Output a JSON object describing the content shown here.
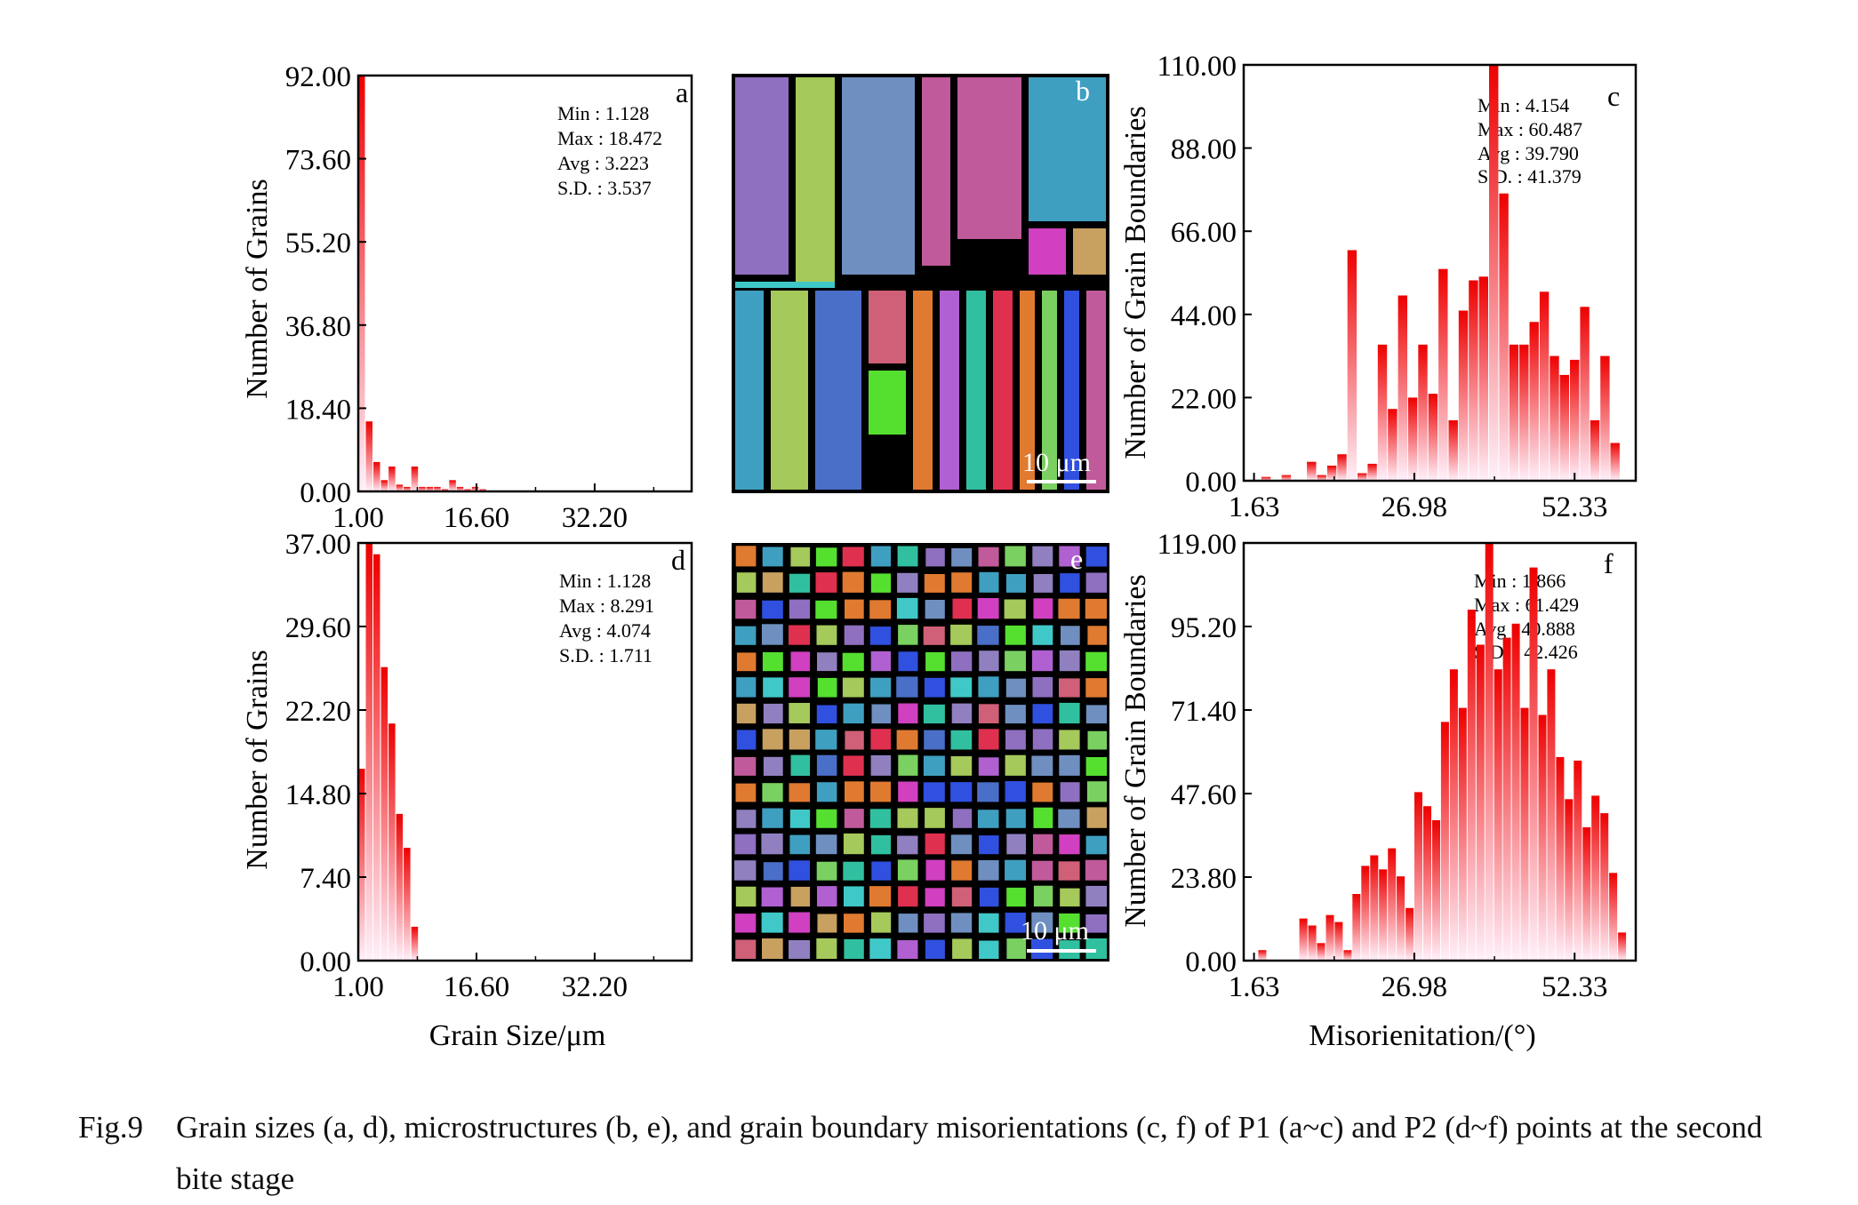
{
  "colors": {
    "bar_top": "#ee0000",
    "bar_bottom": "#fff0fa",
    "axis": "#000000",
    "grain_boundary": "#000000",
    "grain_palette": [
      "#8f6fc0",
      "#a5c95a",
      "#6f8fc0",
      "#c05a9a",
      "#3f9fc0",
      "#4a6fc8",
      "#d06078",
      "#55e030",
      "#e07a30",
      "#b060d0",
      "#30c0a0",
      "#e03050",
      "#7ad060",
      "#3050e0",
      "#d040c0",
      "#c8a060",
      "#40c8c8",
      "#9080c0"
    ]
  },
  "chart_data": [
    {
      "id": "a",
      "type": "bar",
      "panel_label": "a",
      "ylabel": "Number of Grains",
      "xlabel": "",
      "xlim": [
        1.0,
        45.0
      ],
      "ylim": [
        0,
        92
      ],
      "xticks": [
        "1.00",
        "16.60",
        "32.20"
      ],
      "yticks": [
        "0.00",
        "18.40",
        "36.80",
        "55.20",
        "73.60",
        "92.00"
      ],
      "bin_width": 1.0,
      "x": [
        1.5,
        2.5,
        3.5,
        4.5,
        5.5,
        6.5,
        7.5,
        8.5,
        9.5,
        10.5,
        11.5,
        12.5,
        13.5,
        14.5,
        15.5,
        16.5,
        17.5
      ],
      "values": [
        92,
        15.5,
        6.5,
        2.5,
        5.5,
        1.5,
        1,
        5.5,
        1,
        1,
        1,
        0.5,
        2.5,
        1,
        0.5,
        1,
        0.5
      ],
      "stats": [
        "Min  : 1.128",
        "Max : 18.472",
        "Avg  : 3.223",
        "S.D. : 3.537"
      ]
    },
    {
      "id": "c",
      "type": "bar",
      "panel_label": "c",
      "ylabel": "Number of Grain Boundaries",
      "xlabel": "",
      "xlim": [
        0,
        62
      ],
      "ylim": [
        0,
        110
      ],
      "xticks": [
        "1.63",
        "26.98",
        "52.33"
      ],
      "yticks": [
        "0.00",
        "22.00",
        "44.00",
        "66.00",
        "88.00",
        "110.00"
      ],
      "bin_width": 1.6,
      "x": [
        3.6,
        6.8,
        10.8,
        12.4,
        14.0,
        15.6,
        17.2,
        18.8,
        20.4,
        22.0,
        23.6,
        25.2,
        26.8,
        28.4,
        30.0,
        31.6,
        33.2,
        34.8,
        36.4,
        38.0,
        39.6,
        41.2,
        42.8,
        44.4,
        46.0,
        47.6,
        49.2,
        50.8,
        52.4,
        54.0,
        55.6,
        57.2,
        58.8
      ],
      "values": [
        1,
        1.5,
        5,
        1.5,
        4,
        7,
        61,
        2,
        4.5,
        36,
        19,
        49,
        22,
        36,
        23,
        56,
        16,
        45,
        53,
        54,
        110,
        76,
        36,
        36,
        42,
        50,
        33,
        28,
        32,
        46,
        16,
        33,
        10
      ],
      "stats": [
        "Min  :  4.154",
        "Max  :  60.487",
        "Avg  :  39.790",
        "S.D. :  41.379"
      ]
    },
    {
      "id": "d",
      "type": "bar",
      "panel_label": "d",
      "ylabel": "Number of Grains",
      "xlabel": "Grain Size/μm",
      "xlim": [
        1.0,
        45.0
      ],
      "ylim": [
        0,
        37
      ],
      "xticks": [
        "1.00",
        "16.60",
        "32.20"
      ],
      "yticks": [
        "0.00",
        "7.40",
        "14.80",
        "22.20",
        "29.60",
        "37.00"
      ],
      "bin_width": 1.0,
      "x": [
        1.5,
        2.5,
        3.5,
        4.5,
        5.5,
        6.5,
        7.5,
        8.5
      ],
      "values": [
        17,
        37,
        36,
        26,
        21,
        13,
        10,
        3
      ],
      "stats": [
        "Min  : 1.128",
        "Max : 8.291",
        "Avg  : 4.074",
        "S.D. : 1.711"
      ]
    },
    {
      "id": "f",
      "type": "bar",
      "panel_label": "f",
      "ylabel": "Number of Grain Boundaries",
      "xlabel": "Misorienitation/(°)",
      "xlim": [
        0,
        62
      ],
      "ylim": [
        0,
        119
      ],
      "xticks": [
        "1.63",
        "26.98",
        "52.33"
      ],
      "yticks": [
        "0.00",
        "23.80",
        "47.60",
        "71.40",
        "95.20",
        "119.00"
      ],
      "bin_width": 1.4,
      "x": [
        3.0,
        9.5,
        10.9,
        12.3,
        13.7,
        15.1,
        16.5,
        17.9,
        19.3,
        20.7,
        22.1,
        23.5,
        24.9,
        26.3,
        27.7,
        29.1,
        30.5,
        31.9,
        33.3,
        34.7,
        36.1,
        37.5,
        38.9,
        40.3,
        41.7,
        43.1,
        44.5,
        45.9,
        47.3,
        48.7,
        50.1,
        51.5,
        52.9,
        54.3,
        55.7,
        57.1,
        58.5,
        59.9
      ],
      "values": [
        3,
        12,
        10,
        5,
        13,
        11,
        3,
        19,
        27,
        30,
        26,
        32,
        24,
        15,
        48,
        44,
        40,
        68,
        83,
        72,
        100,
        90,
        119,
        83,
        92,
        96,
        72,
        112,
        70,
        83,
        58,
        46,
        57,
        38,
        47,
        42,
        25,
        8
      ],
      "stats": [
        "Min  :  1.866",
        "Max  :  61.429",
        "Avg  :  40.888",
        "S.D. :  42.426"
      ]
    }
  ],
  "micrographs": [
    {
      "id": "b",
      "panel_label": "b",
      "scale_bar": "10 μm",
      "style": "coarse"
    },
    {
      "id": "e",
      "panel_label": "e",
      "scale_bar": "10 μm",
      "style": "fine"
    }
  ],
  "caption": {
    "number": "Fig.9",
    "text": "Grain sizes (a, d), microstructures (b, e), and grain boundary misorientations (c, f) of P1 (a~c) and P2 (d~f) points at the second",
    "continuation": "bite stage"
  }
}
